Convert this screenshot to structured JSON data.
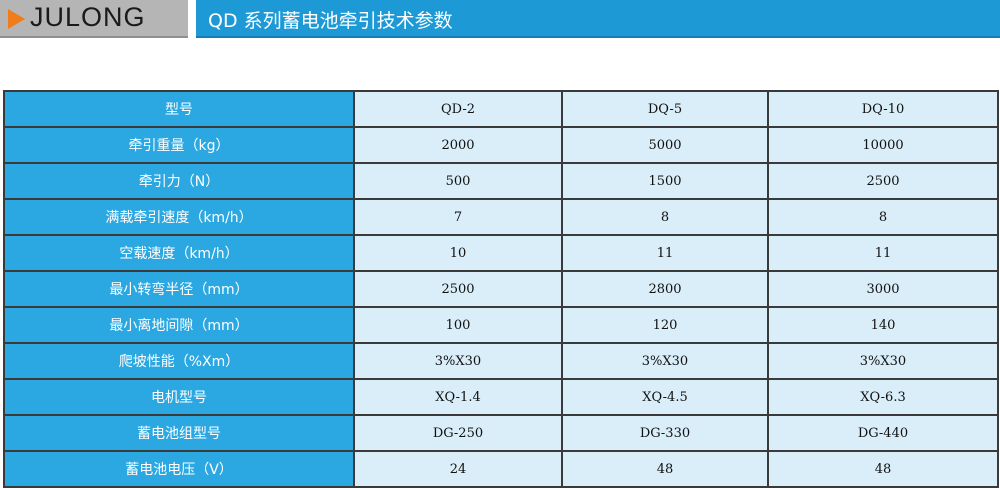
{
  "header": {
    "brand": "JULONG",
    "title": "QD 系列蓄电池牵引技术参数",
    "accent_color": "#1d9ad6",
    "arrow_color": "#f07c1a"
  },
  "table": {
    "header": {
      "label": "型号",
      "values": [
        "QD-2",
        "DQ-5",
        "DQ-10"
      ]
    },
    "rows": [
      {
        "label": "牵引重量（kg）",
        "values": [
          "2000",
          "5000",
          "10000"
        ]
      },
      {
        "label": "牵引力（N）",
        "values": [
          "500",
          "1500",
          "2500"
        ]
      },
      {
        "label": "满载牵引速度（km/h）",
        "values": [
          "7",
          "8",
          "8"
        ]
      },
      {
        "label": "空载速度（km/h）",
        "values": [
          "10",
          "11",
          "11"
        ]
      },
      {
        "label": "最小转弯半径（mm）",
        "values": [
          "2500",
          "2800",
          "3000"
        ]
      },
      {
        "label": "最小离地间隙（mm）",
        "values": [
          "100",
          "120",
          "140"
        ]
      },
      {
        "label": "爬坡性能（%Xm）",
        "values": [
          "3%X30",
          "3%X30",
          "3%X30"
        ]
      },
      {
        "label": "电机型号",
        "values": [
          "XQ-1.4",
          "XQ-4.5",
          "XQ-6.3"
        ]
      },
      {
        "label": "蓄电池组型号",
        "values": [
          "DG-250",
          "DG-330",
          "DG-440"
        ]
      },
      {
        "label": "蓄电池电压（V）",
        "values": [
          "24",
          "48",
          "48"
        ]
      }
    ]
  }
}
